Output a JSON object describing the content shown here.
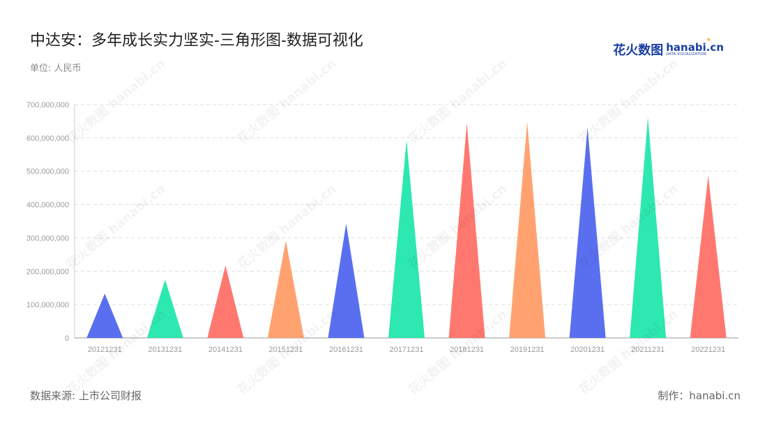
{
  "header": {
    "title": "中达安：多年成长实力坚实-三角形图-数据可视化",
    "unit": "单位: 人民币"
  },
  "logo": {
    "cn": "花火数图",
    "en": "hanabi.cn",
    "sub": "DATA VISUALIZATION"
  },
  "footer": {
    "source": "数据来源: 上市公司财报",
    "maker": "制作：hanabi.cn"
  },
  "watermark": "花火数图 hanabi.cn",
  "colors": {
    "palette": [
      "#5a6ff0",
      "#2de8b0",
      "#ff7870",
      "#ffa270"
    ],
    "grid": "#dddddd",
    "axis": "#999999"
  },
  "chart_data": {
    "type": "bar",
    "shape": "triangle",
    "categories": [
      "20121231",
      "20131231",
      "20141231",
      "20151231",
      "20161231",
      "20171231",
      "20181231",
      "20191231",
      "20201231",
      "20211231",
      "20221231"
    ],
    "values": [
      133000000,
      175000000,
      217000000,
      292000000,
      343000000,
      593000000,
      645000000,
      648000000,
      632000000,
      662000000,
      487000000
    ],
    "ylim": [
      0,
      700000000
    ],
    "yticks": [
      0,
      100000000,
      200000000,
      300000000,
      400000000,
      500000000,
      600000000,
      700000000
    ],
    "ytick_labels": [
      "0",
      "100,000,000",
      "200,000,000",
      "300,000,000",
      "400,000,000",
      "500,000,000",
      "600,000,000",
      "700,000,000"
    ],
    "grid": true,
    "legend": "none"
  }
}
